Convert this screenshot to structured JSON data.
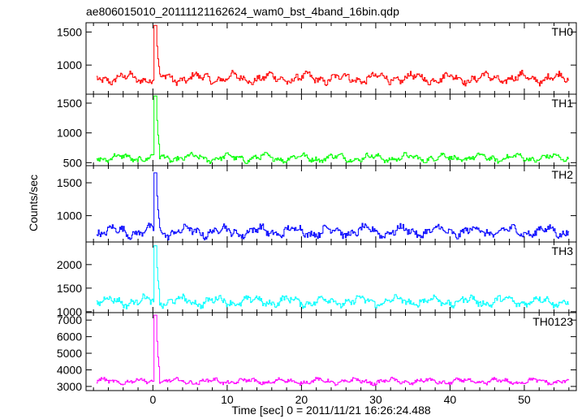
{
  "chart_data": {
    "type": "line",
    "title": "ae806015010_20111121162624_wam0_bst_4band_16bin.qdp",
    "xlabel": "Time [sec] 0 = 2011/11/21 16:26:24.488",
    "ylabel": "Counts/sec",
    "xlim": [
      -9,
      57
    ],
    "xticks": [
      0,
      10,
      20,
      30,
      40,
      50
    ],
    "xtick_labels": [
      "0",
      "10",
      "20",
      "30",
      "40",
      "50"
    ],
    "grid": false,
    "panels": [
      {
        "name": "TH0",
        "color": "#ff0000",
        "ylim": [
          560,
          1640
        ],
        "yticks": [
          1000,
          1500
        ],
        "ytick_labels": [
          "1000",
          "1500"
        ],
        "baseline": 800,
        "noise": 55,
        "peak_time": 0.3,
        "peak_value": 1600
      },
      {
        "name": "TH1",
        "color": "#00ff00",
        "ylim": [
          450,
          1650
        ],
        "yticks": [
          500,
          1000,
          1500
        ],
        "ytick_labels": [
          "500",
          "1000",
          "1500"
        ],
        "baseline": 580,
        "noise": 45,
        "peak_time": 0.3,
        "peak_value": 1620
      },
      {
        "name": "TH2",
        "color": "#0000ff",
        "ylim": [
          600,
          1760
        ],
        "yticks": [
          1000,
          1500
        ],
        "ytick_labels": [
          "1000",
          "1500"
        ],
        "baseline": 760,
        "noise": 60,
        "peak_time": 0.3,
        "peak_value": 1650
      },
      {
        "name": "TH3",
        "color": "#00ffff",
        "ylim": [
          980,
          2480
        ],
        "yticks": [
          1000,
          1500,
          2000
        ],
        "ytick_labels": [
          "1000",
          "1500",
          "2000"
        ],
        "baseline": 1220,
        "noise": 75,
        "peak_time": 0.3,
        "peak_value": 2400
      },
      {
        "name": "TH0123",
        "color": "#ff00ff",
        "ylim": [
          2750,
          7450
        ],
        "yticks": [
          3000,
          4000,
          5000,
          6000,
          7000
        ],
        "ytick_labels": [
          "3000",
          "4000",
          "5000",
          "6000",
          "7000"
        ],
        "baseline": 3300,
        "noise": 120,
        "peak_time": 0.3,
        "peak_value": 7300
      }
    ]
  }
}
